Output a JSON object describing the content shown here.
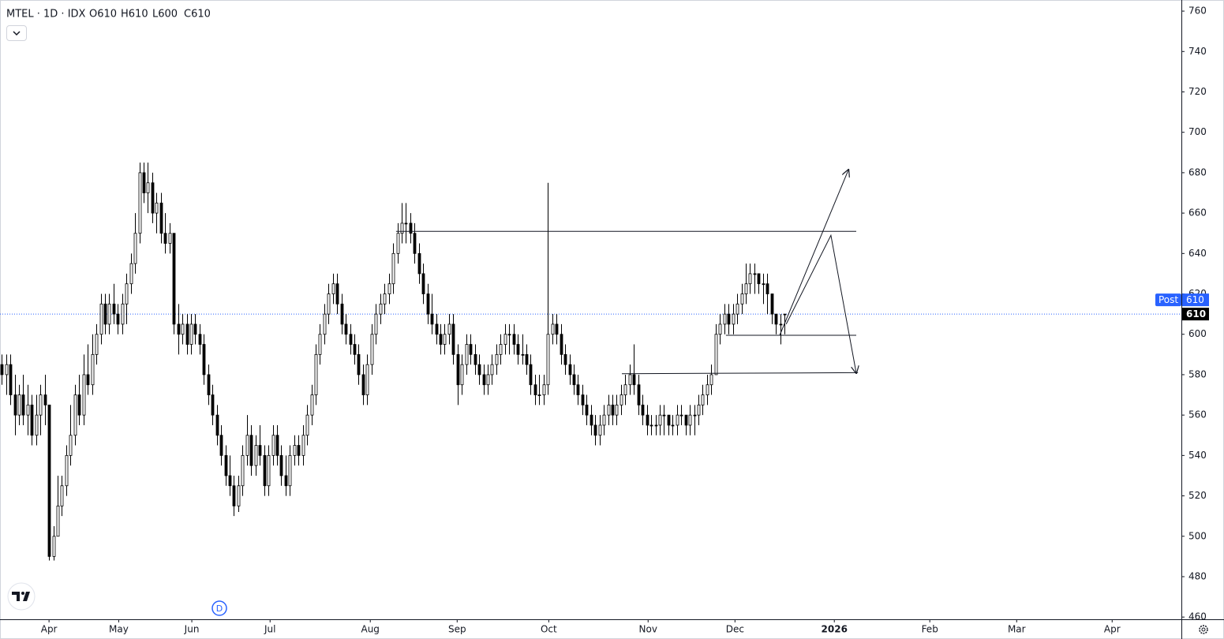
{
  "chart_data": {
    "type": "candlestick",
    "title": "MTEL · 1D · IDX",
    "ohlc_header": [
      "O610",
      "H610",
      "L600",
      "C610"
    ],
    "ohlc": [
      [
        585,
        590,
        575,
        580
      ],
      [
        580,
        590,
        570,
        585
      ],
      [
        585,
        590,
        565,
        570
      ],
      [
        570,
        580,
        550,
        560
      ],
      [
        560,
        575,
        555,
        570
      ],
      [
        570,
        580,
        555,
        560
      ],
      [
        560,
        575,
        550,
        565
      ],
      [
        565,
        570,
        545,
        550
      ],
      [
        550,
        570,
        545,
        560
      ],
      [
        560,
        575,
        550,
        570
      ],
      [
        570,
        580,
        555,
        565
      ],
      [
        565,
        565,
        488,
        490
      ],
      [
        490,
        505,
        488,
        500
      ],
      [
        500,
        530,
        500,
        515
      ],
      [
        515,
        530,
        510,
        525
      ],
      [
        525,
        545,
        520,
        540
      ],
      [
        540,
        565,
        535,
        550
      ],
      [
        550,
        575,
        545,
        570
      ],
      [
        570,
        580,
        555,
        560
      ],
      [
        560,
        590,
        555,
        580
      ],
      [
        580,
        595,
        570,
        575
      ],
      [
        575,
        600,
        570,
        590
      ],
      [
        590,
        605,
        585,
        600
      ],
      [
        600,
        620,
        595,
        615
      ],
      [
        615,
        620,
        600,
        605
      ],
      [
        605,
        620,
        600,
        615
      ],
      [
        615,
        625,
        605,
        610
      ],
      [
        610,
        615,
        600,
        605
      ],
      [
        605,
        620,
        600,
        615
      ],
      [
        615,
        630,
        605,
        625
      ],
      [
        625,
        640,
        620,
        635
      ],
      [
        635,
        660,
        630,
        650
      ],
      [
        650,
        685,
        645,
        680
      ],
      [
        680,
        685,
        665,
        670
      ],
      [
        670,
        685,
        660,
        675
      ],
      [
        675,
        680,
        655,
        660
      ],
      [
        660,
        670,
        650,
        665
      ],
      [
        665,
        670,
        645,
        650
      ],
      [
        650,
        660,
        640,
        645
      ],
      [
        645,
        655,
        640,
        650
      ],
      [
        650,
        650,
        600,
        605
      ],
      [
        605,
        615,
        590,
        600
      ],
      [
        600,
        610,
        595,
        605
      ],
      [
        605,
        610,
        590,
        595
      ],
      [
        595,
        610,
        590,
        605
      ],
      [
        605,
        610,
        595,
        600
      ],
      [
        600,
        605,
        590,
        595
      ],
      [
        595,
        600,
        575,
        580
      ],
      [
        580,
        585,
        565,
        570
      ],
      [
        570,
        575,
        555,
        560
      ],
      [
        560,
        565,
        545,
        550
      ],
      [
        550,
        555,
        535,
        540
      ],
      [
        540,
        545,
        525,
        530
      ],
      [
        530,
        540,
        520,
        525
      ],
      [
        525,
        530,
        510,
        515
      ],
      [
        515,
        530,
        512,
        525
      ],
      [
        525,
        545,
        520,
        540
      ],
      [
        540,
        560,
        535,
        550
      ],
      [
        550,
        555,
        530,
        535
      ],
      [
        535,
        550,
        530,
        545
      ],
      [
        545,
        555,
        535,
        540
      ],
      [
        540,
        545,
        520,
        525
      ],
      [
        525,
        545,
        520,
        540
      ],
      [
        540,
        555,
        535,
        550
      ],
      [
        550,
        555,
        535,
        540
      ],
      [
        540,
        545,
        525,
        530
      ],
      [
        530,
        540,
        520,
        525
      ],
      [
        525,
        545,
        520,
        540
      ],
      [
        540,
        550,
        535,
        545
      ],
      [
        545,
        550,
        535,
        540
      ],
      [
        540,
        555,
        535,
        550
      ],
      [
        550,
        565,
        545,
        560
      ],
      [
        560,
        575,
        555,
        570
      ],
      [
        570,
        595,
        565,
        590
      ],
      [
        590,
        605,
        585,
        600
      ],
      [
        600,
        615,
        595,
        610
      ],
      [
        610,
        625,
        605,
        620
      ],
      [
        620,
        630,
        615,
        625
      ],
      [
        625,
        630,
        610,
        615
      ],
      [
        615,
        620,
        600,
        605
      ],
      [
        605,
        610,
        595,
        600
      ],
      [
        600,
        605,
        590,
        595
      ],
      [
        595,
        600,
        585,
        590
      ],
      [
        590,
        595,
        575,
        580
      ],
      [
        580,
        585,
        565,
        570
      ],
      [
        570,
        590,
        565,
        585
      ],
      [
        585,
        605,
        580,
        600
      ],
      [
        600,
        615,
        595,
        610
      ],
      [
        610,
        620,
        605,
        615
      ],
      [
        615,
        625,
        610,
        620
      ],
      [
        620,
        630,
        615,
        625
      ],
      [
        625,
        645,
        620,
        640
      ],
      [
        640,
        655,
        635,
        650
      ],
      [
        650,
        665,
        645,
        655
      ],
      [
        655,
        665,
        645,
        655
      ],
      [
        655,
        660,
        645,
        650
      ],
      [
        650,
        655,
        635,
        640
      ],
      [
        640,
        645,
        625,
        630
      ],
      [
        630,
        635,
        615,
        620
      ],
      [
        620,
        625,
        605,
        610
      ],
      [
        610,
        620,
        600,
        605
      ],
      [
        605,
        610,
        595,
        600
      ],
      [
        600,
        605,
        590,
        595
      ],
      [
        595,
        605,
        590,
        600
      ],
      [
        600,
        610,
        595,
        605
      ],
      [
        605,
        610,
        585,
        590
      ],
      [
        590,
        595,
        565,
        575
      ],
      [
        575,
        590,
        570,
        585
      ],
      [
        585,
        600,
        580,
        595
      ],
      [
        595,
        600,
        585,
        590
      ],
      [
        590,
        595,
        580,
        585
      ],
      [
        585,
        590,
        575,
        580
      ],
      [
        580,
        585,
        570,
        575
      ],
      [
        575,
        585,
        570,
        580
      ],
      [
        580,
        590,
        575,
        585
      ],
      [
        585,
        595,
        580,
        590
      ],
      [
        590,
        600,
        585,
        595
      ],
      [
        595,
        605,
        590,
        600
      ],
      [
        600,
        605,
        590,
        600
      ],
      [
        600,
        605,
        590,
        595
      ],
      [
        595,
        600,
        585,
        590
      ],
      [
        590,
        600,
        585,
        590
      ],
      [
        590,
        595,
        580,
        585
      ],
      [
        585,
        590,
        570,
        575
      ],
      [
        575,
        580,
        565,
        570
      ],
      [
        570,
        580,
        565,
        570
      ],
      [
        570,
        580,
        565,
        575
      ],
      [
        575,
        675,
        570,
        600
      ],
      [
        600,
        610,
        595,
        605
      ],
      [
        605,
        610,
        595,
        600
      ],
      [
        600,
        605,
        585,
        590
      ],
      [
        590,
        595,
        580,
        585
      ],
      [
        585,
        590,
        575,
        580
      ],
      [
        580,
        585,
        570,
        575
      ],
      [
        575,
        580,
        565,
        570
      ],
      [
        570,
        575,
        560,
        565
      ],
      [
        565,
        570,
        555,
        560
      ],
      [
        560,
        565,
        550,
        555
      ],
      [
        555,
        560,
        545,
        550
      ],
      [
        550,
        560,
        545,
        555
      ],
      [
        555,
        565,
        550,
        560
      ],
      [
        560,
        570,
        555,
        565
      ],
      [
        565,
        570,
        555,
        560
      ],
      [
        560,
        570,
        555,
        565
      ],
      [
        565,
        575,
        560,
        570
      ],
      [
        570,
        580,
        565,
        575
      ],
      [
        575,
        585,
        570,
        580
      ],
      [
        580,
        595,
        570,
        575
      ],
      [
        575,
        580,
        560,
        565
      ],
      [
        565,
        570,
        555,
        560
      ],
      [
        560,
        565,
        550,
        555
      ],
      [
        555,
        560,
        550,
        555
      ],
      [
        555,
        560,
        550,
        555
      ],
      [
        555,
        565,
        550,
        560
      ],
      [
        560,
        565,
        550,
        560
      ],
      [
        560,
        560,
        550,
        555
      ],
      [
        555,
        560,
        550,
        555
      ],
      [
        555,
        565,
        550,
        560
      ],
      [
        560,
        565,
        555,
        560
      ],
      [
        560,
        560,
        550,
        555
      ],
      [
        555,
        565,
        550,
        560
      ],
      [
        560,
        565,
        550,
        560
      ],
      [
        560,
        570,
        555,
        565
      ],
      [
        565,
        575,
        560,
        570
      ],
      [
        570,
        580,
        565,
        575
      ],
      [
        575,
        585,
        570,
        580
      ],
      [
        580,
        605,
        580,
        600
      ],
      [
        600,
        610,
        595,
        605
      ],
      [
        605,
        615,
        600,
        610
      ],
      [
        610,
        615,
        600,
        605
      ],
      [
        605,
        615,
        600,
        610
      ],
      [
        610,
        620,
        605,
        615
      ],
      [
        615,
        625,
        610,
        620
      ],
      [
        620,
        635,
        615,
        625
      ],
      [
        625,
        635,
        620,
        630
      ],
      [
        630,
        635,
        620,
        630
      ],
      [
        630,
        630,
        620,
        625
      ],
      [
        625,
        630,
        615,
        625
      ],
      [
        625,
        630,
        610,
        620
      ],
      [
        620,
        620,
        605,
        610
      ],
      [
        610,
        610,
        600,
        605
      ],
      [
        605,
        610,
        595,
        605
      ],
      [
        610,
        610,
        600,
        610
      ]
    ],
    "xlim": [
      -0.4,
      274.3
    ],
    "xticks": [
      {
        "value": 11,
        "label": "Apr"
      },
      {
        "value": 27.2,
        "label": "May"
      },
      {
        "value": 44.2,
        "label": "Jun"
      },
      {
        "value": 62.4,
        "label": "Jul"
      },
      {
        "value": 85.7,
        "label": "Aug"
      },
      {
        "value": 105.9,
        "label": "Sep"
      },
      {
        "value": 127.2,
        "label": "Oct"
      },
      {
        "value": 150.3,
        "label": "Nov"
      },
      {
        "value": 170.5,
        "label": "Dec"
      },
      {
        "value": 193.6,
        "label": "2026"
      },
      {
        "value": 215.8,
        "label": "Feb"
      },
      {
        "value": 236,
        "label": "Mar"
      },
      {
        "value": 258.2,
        "label": "Apr"
      }
    ],
    "ylim": [
      458.9,
      765.5
    ],
    "yticks": [
      460,
      480,
      500,
      520,
      540,
      560,
      580,
      600,
      620,
      640,
      660,
      680,
      700,
      720,
      740,
      760
    ],
    "last_price": 610,
    "post": {
      "label": "Post",
      "value": 610
    },
    "marker": "D",
    "lines": [
      {
        "x": [
          91.7,
          198.7
        ],
        "y": [
          651,
          651
        ]
      },
      {
        "x": [
          168.4,
          198.7
        ],
        "y": [
          599.5,
          599.5
        ]
      },
      {
        "x": [
          144.2,
          199.1
        ],
        "y": [
          580.5,
          581
        ]
      },
      {
        "x": [
          180.9,
          196.9
        ],
        "y": [
          599.5,
          681.5
        ],
        "arrow": true
      },
      {
        "x": [
          182.4,
          192.8,
          198.7
        ],
        "y": [
          605,
          649,
          580.8
        ],
        "arrow": true
      }
    ]
  }
}
